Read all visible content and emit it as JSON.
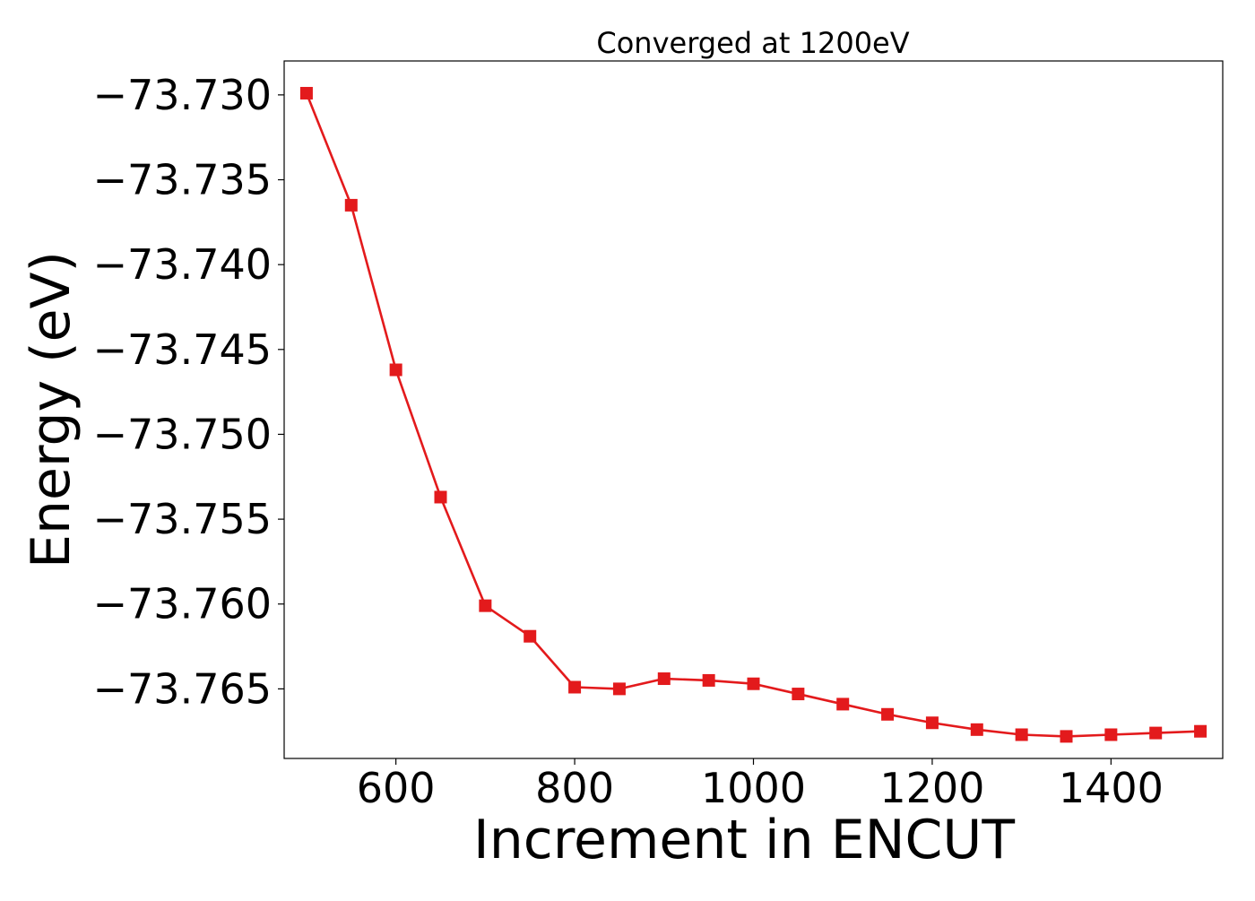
{
  "chart_data": {
    "type": "line",
    "title": "Converged at 1200eV",
    "xlabel": "Increment in ENCUT",
    "ylabel": "Energy (eV)",
    "xlim": [
      475,
      1525
    ],
    "ylim": [
      -73.7691,
      -73.728
    ],
    "x_ticks": [
      600,
      800,
      1000,
      1200,
      1400
    ],
    "x_tick_labels": [
      "600",
      "800",
      "1000",
      "1200",
      "1400"
    ],
    "y_ticks": [
      -73.73,
      -73.735,
      -73.74,
      -73.745,
      -73.75,
      -73.755,
      -73.76,
      -73.765
    ],
    "y_tick_labels": [
      "−73.730",
      "−73.735",
      "−73.740",
      "−73.745",
      "−73.750",
      "−73.755",
      "−73.760",
      "−73.765"
    ],
    "grid": false,
    "legend": "none",
    "marker": "square",
    "series_color": "#e31a1c",
    "series": [
      {
        "x": [
          500,
          550,
          600,
          650,
          700,
          750,
          800,
          850,
          900,
          950,
          1000,
          1050,
          1100,
          1150,
          1200,
          1250,
          1300,
          1350,
          1400,
          1450,
          1500
        ],
        "values": [
          -73.7299,
          -73.7365,
          -73.7462,
          -73.7537,
          -73.7601,
          -73.7619,
          -73.7649,
          -73.765,
          -73.7644,
          -73.7645,
          -73.7647,
          -73.7653,
          -73.7659,
          -73.7665,
          -73.767,
          -73.7674,
          -73.7677,
          -73.7678,
          -73.7677,
          -73.7676,
          -73.7675
        ]
      }
    ]
  }
}
